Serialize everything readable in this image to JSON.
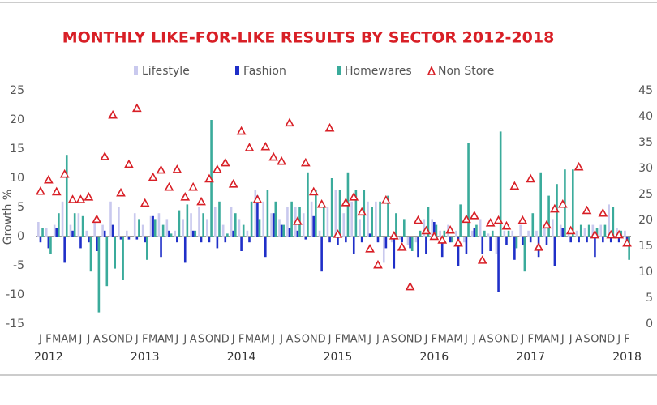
{
  "chart_data": {
    "type": "bar",
    "title": "MONTHLY LIKE-FOR-LIKE RESULTS BY SECTOR 2012-2018",
    "y_label": "Growth %",
    "categories": [
      "J",
      "F",
      "M",
      "A",
      "M",
      "J",
      "J",
      "A",
      "S",
      "O",
      "N",
      "D",
      "J",
      "F",
      "M",
      "A",
      "M",
      "J",
      "J",
      "A",
      "S",
      "O",
      "N",
      "D",
      "J",
      "F",
      "M",
      "A",
      "M",
      "J",
      "J",
      "A",
      "S",
      "O",
      "N",
      "D",
      "J",
      "F",
      "M",
      "A",
      "M",
      "J",
      "J",
      "A",
      "S",
      "O",
      "N",
      "D",
      "J",
      "F",
      "M",
      "A",
      "M",
      "J",
      "J",
      "A",
      "S",
      "O",
      "N",
      "D",
      "J",
      "F",
      "M",
      "A",
      "M",
      "J",
      "J",
      "A",
      "S",
      "O",
      "N",
      "D",
      "J",
      "F"
    ],
    "years": [
      "2012",
      "2013",
      "2014",
      "2015",
      "2016",
      "2017",
      "2018"
    ],
    "ylim": [
      -15,
      25
    ],
    "yticks": [
      -15,
      -10,
      -5,
      0,
      5,
      10,
      15,
      20,
      25
    ],
    "y2lim": [
      0,
      45
    ],
    "y2ticks": [
      0,
      5,
      10,
      15,
      20,
      25,
      30,
      35,
      40,
      45
    ],
    "series": [
      {
        "name": "Lifestyle",
        "color": "#c9c9ee",
        "values": [
          2.5,
          1.5,
          2,
          6,
          2,
          4,
          1,
          3,
          2,
          6,
          5,
          1,
          4,
          2,
          3.5,
          4,
          3,
          1,
          3,
          4,
          5,
          3,
          5,
          2,
          5,
          3,
          1,
          8,
          6,
          4,
          3,
          5,
          5,
          4,
          6,
          1,
          5,
          8,
          4,
          6,
          3,
          6,
          6,
          -4.5,
          -1,
          -0.5,
          -1.5,
          -1,
          3,
          3,
          1,
          2,
          1,
          -1,
          1,
          3,
          0.5,
          -3,
          1,
          1,
          2,
          1,
          1,
          2,
          3,
          2,
          1,
          1,
          1.5,
          2,
          2,
          5.5,
          1.5,
          1
        ]
      },
      {
        "name": "Fashion",
        "color": "#1f2fc8",
        "values": [
          -1,
          -2,
          1.5,
          -4.5,
          1,
          -2,
          -1,
          -2.5,
          1,
          2,
          -0.5,
          -0.5,
          -0.5,
          -1,
          3.5,
          -3.5,
          1,
          -1,
          -4.5,
          1,
          -1,
          -1,
          -2,
          -1,
          1,
          -2.5,
          -1,
          7,
          -3.5,
          4,
          2,
          1.5,
          1,
          -0.5,
          3.5,
          -6,
          -1,
          -1.5,
          -1,
          -3,
          -1,
          0.5,
          -1,
          -2,
          -5.5,
          -1,
          -2,
          -3.5,
          -3,
          2.5,
          -3.5,
          -1,
          -5,
          -3,
          1.5,
          -3,
          -2.5,
          -9.5,
          -1.5,
          -4,
          -1.5,
          -1,
          -3.5,
          -1.5,
          -5,
          1.5,
          -1,
          -1,
          -1,
          -3.5,
          -1,
          -1,
          -1,
          -1.5
        ]
      },
      {
        "name": "Homewares",
        "color": "#3aab9b",
        "values": [
          1.5,
          -3,
          4,
          14,
          4,
          3.5,
          -6,
          -13,
          -8.5,
          -5.5,
          -7.5,
          0,
          3,
          -4,
          3,
          2,
          0.5,
          4.5,
          5.5,
          1,
          4,
          20,
          6,
          0.5,
          4,
          2,
          6,
          3,
          8,
          6,
          2,
          6,
          5,
          11,
          8,
          5,
          10,
          8,
          11,
          8,
          8,
          5,
          6,
          7,
          4,
          3,
          -2.5,
          1,
          5,
          2,
          1,
          -1,
          5.5,
          16,
          2,
          1,
          1,
          18,
          1,
          -2,
          -6,
          4,
          11,
          7,
          9,
          11.5,
          11.5,
          2,
          2,
          1.5,
          2,
          5,
          1,
          -4
        ]
      },
      {
        "name": "Non Store",
        "type": "scatter",
        "axis": "y2",
        "color": "#d81f26",
        "values": [
          25.6,
          27.8,
          25.5,
          28.9,
          24,
          24,
          24.5,
          20.2,
          32.3,
          40.3,
          25.3,
          30.8,
          41.6,
          23.3,
          28.3,
          29.7,
          26.4,
          29.8,
          24.5,
          26.4,
          23.6,
          28,
          29.8,
          31.1,
          27,
          37.2,
          34,
          24,
          34.2,
          32.2,
          31.4,
          38.8,
          19.8,
          31.1,
          25.5,
          23.1,
          37.8,
          17.3,
          23.4,
          24.5,
          21.6,
          14.5,
          11.4,
          23.9,
          17,
          14.8,
          7.2,
          20,
          18,
          16.9,
          16.2,
          18.1,
          15.6,
          20.2,
          20.9,
          12.3,
          19.5,
          20,
          18.9,
          26.6,
          20,
          28,
          14.8,
          19.1,
          22.2,
          23.1,
          18,
          30.3,
          21.9,
          17.2,
          21.4,
          17.2,
          17.2,
          15.6
        ]
      }
    ]
  }
}
